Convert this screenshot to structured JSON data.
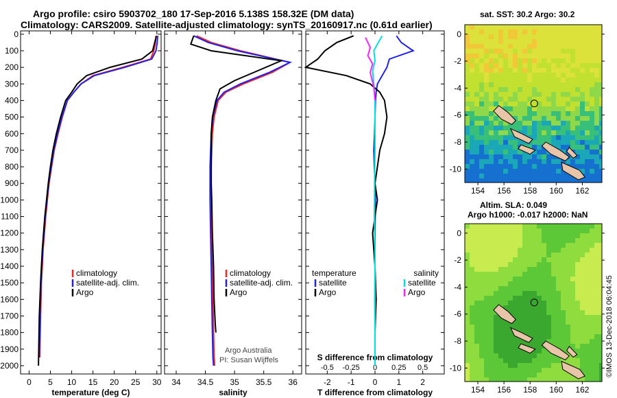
{
  "title": {
    "line1": "Argo profile: csiro 5903702_180 17-Sep-2016 5.138S 158.32E (DM data)",
    "line2": "Climatology: CARS2009. Satellite-adjusted climatology: synTS_20160917.nc (0.61d earlier)"
  },
  "colors": {
    "clim": "#ff2020",
    "sat": "#2020ee",
    "argo": "#000000",
    "sat_s": "#00e0e0",
    "argo_s": "#ff20ff"
  },
  "chart_data": [
    {
      "type": "line",
      "xlabel": "temperature (deg C)",
      "ylim": [
        2050,
        -20
      ],
      "xlim": [
        -2,
        31
      ],
      "xticks": [
        0,
        5,
        10,
        15,
        20,
        25,
        30
      ],
      "yticks": [
        0,
        100,
        200,
        300,
        400,
        500,
        600,
        700,
        800,
        900,
        1000,
        1100,
        1200,
        1300,
        1400,
        1500,
        1600,
        1700,
        1800,
        1900,
        2000
      ],
      "legend": [
        "climatology",
        "satellite-adj. clim.",
        "Argo"
      ],
      "series": [
        {
          "name": "climatology",
          "x": [
            29.8,
            29.7,
            29.3,
            28.5,
            22,
            15,
            12.2,
            10.5,
            9.0,
            7.8,
            6.8,
            5.9,
            5.3,
            4.7,
            4.3,
            3.9,
            3.6,
            3.3,
            3.1,
            2.9,
            2.7,
            2.5
          ],
          "y": [
            10,
            50,
            100,
            150,
            200,
            250,
            300,
            350,
            400,
            500,
            600,
            700,
            800,
            900,
            1000,
            1100,
            1200,
            1300,
            1400,
            1500,
            1700,
            1950
          ]
        },
        {
          "name": "satellite-adj. clim.",
          "x": [
            30.2,
            30.1,
            29.8,
            28.8,
            22.5,
            15.3,
            12.2,
            10.5,
            9.0,
            7.7,
            6.7,
            5.8,
            5.2,
            4.6,
            4.2,
            3.8,
            3.5,
            3.2,
            3.0,
            2.8,
            2.6,
            2.4
          ],
          "y": [
            10,
            50,
            100,
            150,
            200,
            250,
            300,
            350,
            400,
            500,
            600,
            700,
            800,
            900,
            1000,
            1100,
            1200,
            1300,
            1400,
            1500,
            1700,
            1950
          ]
        },
        {
          "name": "Argo",
          "x": [
            29.9,
            29.5,
            29.0,
            26.5,
            19.0,
            13.5,
            11.3,
            10.0,
            8.6,
            7.4,
            6.4,
            5.6,
            5.0,
            4.5,
            4.1,
            3.7,
            3.4,
            3.1,
            2.9,
            2.7,
            2.4,
            2.2
          ],
          "y": [
            10,
            50,
            100,
            150,
            200,
            250,
            300,
            350,
            400,
            500,
            600,
            700,
            800,
            900,
            1000,
            1100,
            1200,
            1300,
            1400,
            1500,
            1700,
            2000
          ]
        }
      ]
    },
    {
      "type": "line",
      "xlabel": "salinity",
      "ylim": [
        2050,
        -20
      ],
      "xlim": [
        33.8,
        36.15
      ],
      "xticks": [
        34,
        34.5,
        35,
        35.5,
        36
      ],
      "legend": [
        "climatology",
        "satellite-adj. clim.",
        "Argo"
      ],
      "series": [
        {
          "name": "climatology",
          "x": [
            34.35,
            34.6,
            35.1,
            35.95,
            35.65,
            35.15,
            34.85,
            34.72,
            34.65,
            34.62,
            34.61,
            34.6,
            34.6,
            34.6,
            34.61,
            34.62,
            34.63,
            34.64,
            34.65,
            34.66
          ],
          "y": [
            10,
            50,
            100,
            170,
            230,
            300,
            350,
            400,
            500,
            600,
            700,
            800,
            900,
            1000,
            1200,
            1400,
            1600,
            1800,
            1950,
            2000
          ]
        },
        {
          "name": "satellite-adj. clim.",
          "x": [
            34.3,
            34.55,
            35.05,
            35.95,
            35.6,
            35.1,
            34.82,
            34.7,
            34.63,
            34.6,
            34.59,
            34.58,
            34.58,
            34.58,
            34.59,
            34.6,
            34.61,
            34.62,
            34.63,
            34.64
          ],
          "y": [
            10,
            50,
            100,
            170,
            230,
            300,
            350,
            400,
            500,
            600,
            700,
            800,
            900,
            1000,
            1200,
            1400,
            1600,
            1800,
            1950,
            2000
          ]
        },
        {
          "name": "Argo",
          "x": [
            34.3,
            34.25,
            34.6,
            35.8,
            35.4,
            35.0,
            34.75,
            34.68,
            34.62,
            34.6,
            34.6,
            34.6,
            34.6,
            34.61,
            34.62,
            34.64,
            34.65,
            34.67,
            34.68
          ],
          "y": [
            10,
            60,
            100,
            160,
            220,
            280,
            330,
            400,
            500,
            600,
            700,
            800,
            900,
            1000,
            1200,
            1400,
            1600,
            1750,
            1800
          ]
        }
      ],
      "annotation": [
        "Argo Australia",
        "PI: Susan Wijffels"
      ]
    },
    {
      "type": "line",
      "xlabel": "T difference from climatology",
      "xlabel_top": "S difference from climatology",
      "ylim": [
        2050,
        -20
      ],
      "xlim": [
        -2.9,
        2.9
      ],
      "xticks": [
        -2,
        -1,
        0,
        1,
        2
      ],
      "xticks_top": [
        "-0.5",
        "-0.25",
        "0",
        "0.25",
        "0.5"
      ],
      "legend_left": [
        "temperature",
        "satellite",
        "Argo"
      ],
      "legend_right": [
        "salinity",
        "satellite",
        "Argo"
      ],
      "series": [
        {
          "name": "T satellite",
          "x": [
            0.9,
            1.1,
            1.6,
            0.6,
            0.5,
            0.3,
            0.1,
            0.05,
            0.02,
            0.0,
            -0.02,
            -0.05,
            -0.03,
            0.0,
            0.02,
            0.0,
            0.0,
            -0.01,
            0.0,
            0.0
          ],
          "y": [
            10,
            50,
            100,
            150,
            200,
            250,
            300,
            350,
            400,
            500,
            600,
            700,
            800,
            900,
            1000,
            1200,
            1400,
            1600,
            1800,
            1950
          ]
        },
        {
          "name": "T Argo",
          "x": [
            -0.9,
            -1.6,
            -2.1,
            -2.4,
            -2.9,
            -1.2,
            -0.2,
            0.2,
            0.4,
            0.5,
            0.4,
            0.2,
            0.1,
            0.0,
            0.1,
            -0.1,
            0.0,
            0.05,
            0.0,
            0.0
          ],
          "y": [
            10,
            50,
            100,
            150,
            200,
            250,
            300,
            350,
            400,
            500,
            600,
            700,
            800,
            900,
            1000,
            1200,
            1400,
            1600,
            1800,
            1950
          ]
        },
        {
          "name": "S satellite",
          "x": [
            0.3,
            0.1,
            -0.05,
            0.0,
            -0.1,
            -0.05,
            0.0,
            0.0,
            0.0,
            -0.02,
            -0.03,
            0.0,
            0.0,
            0.0,
            0.0,
            0.0
          ],
          "y": [
            10,
            60,
            100,
            160,
            220,
            300,
            400,
            500,
            700,
            900,
            1100,
            1300,
            1500,
            1700,
            1900,
            2000
          ]
        },
        {
          "name": "S Argo",
          "x": [
            -0.4,
            -0.2,
            -0.3,
            -0.1,
            -0.2,
            -0.05,
            0.0
          ],
          "y": [
            20,
            80,
            130,
            180,
            230,
            320,
            400
          ]
        }
      ]
    }
  ],
  "maps": {
    "top": {
      "title": "sat. SST: 30.2  Argo: 30.2",
      "xticks": [
        "154",
        "156",
        "158",
        "160",
        "162"
      ],
      "yticks": [
        "0",
        "-2",
        "-4",
        "-6",
        "-8",
        "-10"
      ]
    },
    "bottom": {
      "title_line1": "Altim. SLA: 0.049",
      "title_line2": "Argo h1000: -0.017 h2000: NaN",
      "xticks": [
        "154",
        "156",
        "158",
        "160",
        "162"
      ],
      "yticks": [
        "0",
        "-2",
        "-4",
        "-6",
        "-8",
        "-10"
      ]
    }
  },
  "stamp": "©IMOS 13-Dec-2018 06:04:45"
}
